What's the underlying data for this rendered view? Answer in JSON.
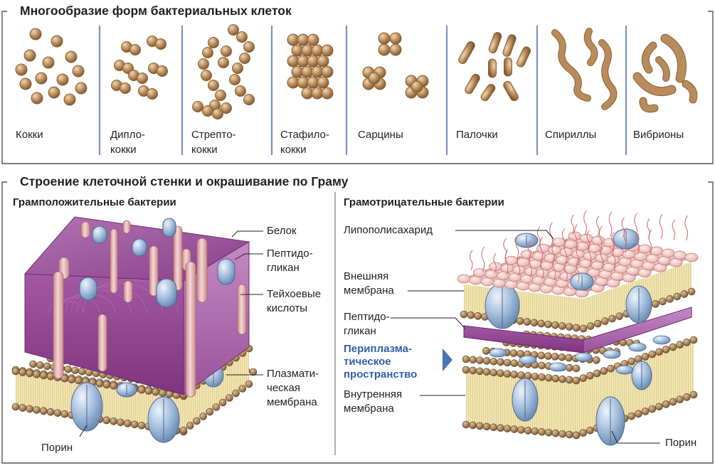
{
  "section1": {
    "title": "Многообразие форм бактериальных клеток",
    "shapes": [
      {
        "line1": "Кокки",
        "line2": ""
      },
      {
        "line1": "Дипло-",
        "line2": "кокки"
      },
      {
        "line1": "Стрепто-",
        "line2": "кокки"
      },
      {
        "line1": "Стафило-",
        "line2": "кокки"
      },
      {
        "line1": "Сарцины",
        "line2": ""
      },
      {
        "line1": "Палочки",
        "line2": ""
      },
      {
        "line1": "Спириллы",
        "line2": ""
      },
      {
        "line1": "Вибрионы",
        "line2": ""
      }
    ]
  },
  "section2": {
    "title": "Строение клеточной стенки и окрашивание по Граму",
    "gram_positive": {
      "title": "Грамположительные бактерии",
      "labels": {
        "protein": "Белок",
        "peptidoglycan_1": "Пептидо-",
        "peptidoglycan_2": "гликан",
        "teichoic_1": "Тейхоевые",
        "teichoic_2": "кислоты",
        "plasma_1": "Плазмати-",
        "plasma_2": "ческая",
        "plasma_3": "мембрана",
        "porin": "Порин"
      }
    },
    "gram_negative": {
      "title": "Грамотрицательные бактерии",
      "labels": {
        "lps": "Липополисахарид",
        "outer_1": "Внешняя",
        "outer_2": "мембрана",
        "peptidoglycan_1": "Пептидо-",
        "peptidoglycan_2": "гликан",
        "periplasm_1": "Периплазма-",
        "periplasm_2": "тическое",
        "periplasm_3": "пространство",
        "inner_1": "Внутренняя",
        "inner_2": "мембрана",
        "porin": "Порин"
      }
    }
  },
  "colors": {
    "frame": "#555555",
    "divider": "#7b93c4",
    "cell_fill": "#b98b5a",
    "cell_dark": "#8a6238",
    "peptidoglycan": "#8e3f8e",
    "peptidoglycan_top": "#a35aa3",
    "protein": "#9cb8d8",
    "teichoic": "#e7b4b4",
    "lipid_head": "#a78258",
    "lipid_tail": "#f0e3a6",
    "lps": "#e2929a",
    "outer_membrane_top": "#f1c6c3",
    "periplasm_text": "#2f5fa8",
    "arrow": "#4a73b8"
  }
}
